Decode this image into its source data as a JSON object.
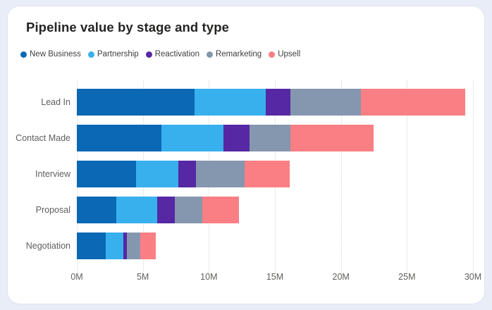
{
  "title": "Pipeline value by stage and type",
  "colors": {
    "page_background": "#e9edf7",
    "card_background": "#ffffff",
    "card_border": "#e0e4f0",
    "title_text": "#252423",
    "axis_text": "#605e5c",
    "legend_text": "#3f3e3e",
    "gridline": "#d6d6d6"
  },
  "chart_data": {
    "type": "bar",
    "orientation": "horizontal",
    "stacked": true,
    "title": "Pipeline value by stage and type",
    "categories": [
      "Lead In",
      "Contact Made",
      "Interview",
      "Proposal",
      "Negotiation"
    ],
    "series": [
      {
        "name": "New Business",
        "color": "#0a68b4",
        "values": [
          8.9,
          6.4,
          4.5,
          3.0,
          2.2
        ]
      },
      {
        "name": "Partnership",
        "color": "#38b0ee",
        "values": [
          5.4,
          4.7,
          3.2,
          3.1,
          1.3
        ]
      },
      {
        "name": "Reactivation",
        "color": "#5628a4",
        "values": [
          1.9,
          2.0,
          1.3,
          1.3,
          0.3
        ]
      },
      {
        "name": "Remarketing",
        "color": "#8597ae",
        "values": [
          5.3,
          3.1,
          3.7,
          2.1,
          1.0
        ]
      },
      {
        "name": "Upsell",
        "color": "#f97f84",
        "values": [
          7.9,
          6.3,
          3.4,
          2.8,
          1.2
        ]
      }
    ],
    "totals": [
      29.4,
      22.5,
      16.1,
      12.3,
      6.0
    ],
    "value_unit": "M",
    "xlabel": "",
    "ylabel": "",
    "x_axis": {
      "min": 0,
      "max": 30,
      "tick_step": 5,
      "tick_labels": [
        "0M",
        "5M",
        "10M",
        "15M",
        "20M",
        "25M",
        "30M"
      ]
    },
    "legend_position": "top",
    "grid": "vertical-dotted"
  }
}
